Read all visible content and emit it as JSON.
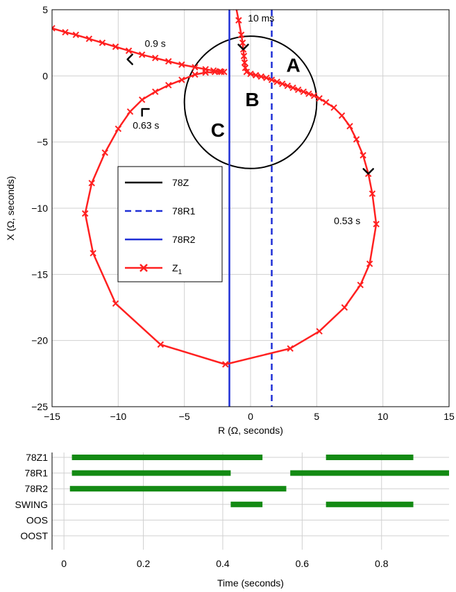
{
  "chart_data": [
    {
      "type": "line",
      "xlabel": "R (Ω, seconds)",
      "ylabel": "X (Ω, seconds)",
      "xlim": [
        -15,
        15
      ],
      "ylim": [
        -25,
        5
      ],
      "xticks": [
        -15,
        -10,
        -5,
        0,
        5,
        10,
        15
      ],
      "yticks": [
        5,
        0,
        -5,
        -10,
        -15,
        -20,
        -25
      ],
      "xtick_labels": [
        "−15",
        "−10",
        "−5",
        "0",
        "5",
        "10",
        "15"
      ],
      "ytick_labels": [
        "5",
        "0",
        "−5",
        "−10",
        "−15",
        "−20",
        "−25"
      ],
      "grid": true,
      "legend_placement": "center-left",
      "legend": [
        {
          "label": "78Z",
          "style": "solid",
          "color": "#000000"
        },
        {
          "label": "78R1",
          "style": "dashed",
          "color": "#1f2fd6"
        },
        {
          "label": "78R2",
          "style": "solid",
          "color": "#1f2fd6"
        },
        {
          "label": "Z",
          "subscript": "1",
          "style": "line-x",
          "color": "#ff2020"
        }
      ],
      "circle_78Z": {
        "center": [
          0,
          -2
        ],
        "radius": 5
      },
      "line_78R1_x": 1.6,
      "line_78R2_x": -1.6,
      "z1_path": [
        [
          -1.1,
          5.2
        ],
        [
          -0.9,
          4.2
        ],
        [
          -0.7,
          3.1
        ],
        [
          -0.6,
          2.5
        ],
        [
          -0.55,
          2.0
        ],
        [
          -0.5,
          1.5
        ],
        [
          -0.45,
          1.0
        ],
        [
          -0.4,
          0.6
        ],
        [
          -0.3,
          0.3
        ],
        [
          0.0,
          0.15
        ],
        [
          0.4,
          0.05
        ],
        [
          0.8,
          -0.05
        ],
        [
          1.2,
          -0.15
        ],
        [
          1.6,
          -0.3
        ],
        [
          2.0,
          -0.45
        ],
        [
          2.4,
          -0.6
        ],
        [
          2.8,
          -0.75
        ],
        [
          3.2,
          -0.9
        ],
        [
          3.6,
          -1.05
        ],
        [
          4.0,
          -1.2
        ],
        [
          4.4,
          -1.35
        ],
        [
          4.8,
          -1.5
        ],
        [
          5.2,
          -1.7
        ],
        [
          5.7,
          -2.0
        ],
        [
          6.3,
          -2.4
        ],
        [
          6.9,
          -3.0
        ],
        [
          7.5,
          -3.8
        ],
        [
          8.0,
          -4.8
        ],
        [
          8.5,
          -6.0
        ],
        [
          8.9,
          -7.4
        ],
        [
          9.2,
          -8.9
        ],
        [
          9.5,
          -11.2
        ],
        [
          9.0,
          -14.2
        ],
        [
          8.3,
          -15.8
        ],
        [
          7.1,
          -17.5
        ],
        [
          5.2,
          -19.3
        ],
        [
          3.0,
          -20.6
        ],
        [
          -1.9,
          -21.8
        ],
        [
          -6.8,
          -20.3
        ],
        [
          -10.2,
          -17.2
        ],
        [
          -11.9,
          -13.4
        ],
        [
          -12.5,
          -10.4
        ],
        [
          -12.0,
          -8.1
        ],
        [
          -11.0,
          -5.8
        ],
        [
          -10.0,
          -4.0
        ],
        [
          -9.1,
          -2.7
        ],
        [
          -8.2,
          -1.8
        ],
        [
          -7.2,
          -1.2
        ],
        [
          -6.2,
          -0.7
        ],
        [
          -5.2,
          -0.3
        ],
        [
          -4.2,
          0.1
        ],
        [
          -3.4,
          0.25
        ],
        [
          -2.7,
          0.3
        ],
        [
          -2.2,
          0.3
        ],
        [
          -2.0,
          0.3
        ],
        [
          -2.3,
          0.35
        ],
        [
          -2.8,
          0.4
        ],
        [
          -3.4,
          0.5
        ],
        [
          -4.2,
          0.65
        ],
        [
          -5.2,
          0.85
        ],
        [
          -6.2,
          1.1
        ],
        [
          -7.2,
          1.35
        ],
        [
          -8.2,
          1.6
        ],
        [
          -9.2,
          1.9
        ],
        [
          -10.2,
          2.2
        ],
        [
          -11.2,
          2.5
        ],
        [
          -12.2,
          2.8
        ],
        [
          -13.2,
          3.1
        ],
        [
          -14.0,
          3.3
        ],
        [
          -15.0,
          3.6
        ]
      ],
      "arrows": [
        {
          "at": [
            -0.55,
            2.0
          ],
          "dir": "down"
        },
        {
          "at": [
            8.9,
            -7.4
          ],
          "dir": "down"
        },
        {
          "at": [
            -9.3,
            1.25
          ],
          "dir": "left"
        },
        {
          "at": [
            -8.2,
            -2.5
          ],
          "dir": "up-left"
        }
      ],
      "annotations": [
        {
          "text": "10 ms",
          "at": [
            -0.2,
            4.1
          ]
        },
        {
          "text": "0.9 s",
          "at": [
            -8.0,
            2.2
          ]
        },
        {
          "text": "0.63 s",
          "at": [
            -8.9,
            -4.0
          ]
        },
        {
          "text": "0.53 s",
          "at": [
            6.3,
            -11.2
          ]
        }
      ],
      "regions": [
        {
          "text": "A",
          "at": [
            2.7,
            0.3
          ]
        },
        {
          "text": "B",
          "at": [
            -0.4,
            -2.3
          ]
        },
        {
          "text": "C",
          "at": [
            -3.0,
            -4.6
          ]
        }
      ]
    },
    {
      "type": "timeline",
      "xlabel": "Time (seconds)",
      "xlim": [
        -0.03,
        0.97
      ],
      "xticks": [
        0,
        0.2,
        0.4,
        0.6,
        0.8
      ],
      "xtick_labels": [
        "0",
        "0.2",
        "0.4",
        "0.6",
        "0.8"
      ],
      "bar_color": "#138a13",
      "rows": [
        {
          "label": "78Z1",
          "intervals": [
            [
              0.02,
              0.5
            ],
            [
              0.66,
              0.88
            ]
          ]
        },
        {
          "label": "78R1",
          "intervals": [
            [
              0.02,
              0.42
            ],
            [
              0.57,
              0.97
            ]
          ]
        },
        {
          "label": "78R2",
          "intervals": [
            [
              0.015,
              0.56
            ]
          ]
        },
        {
          "label": "SWING",
          "intervals": [
            [
              0.42,
              0.5
            ],
            [
              0.66,
              0.88
            ]
          ]
        },
        {
          "label": "OOS",
          "intervals": []
        },
        {
          "label": "OOST",
          "intervals": []
        }
      ]
    }
  ]
}
